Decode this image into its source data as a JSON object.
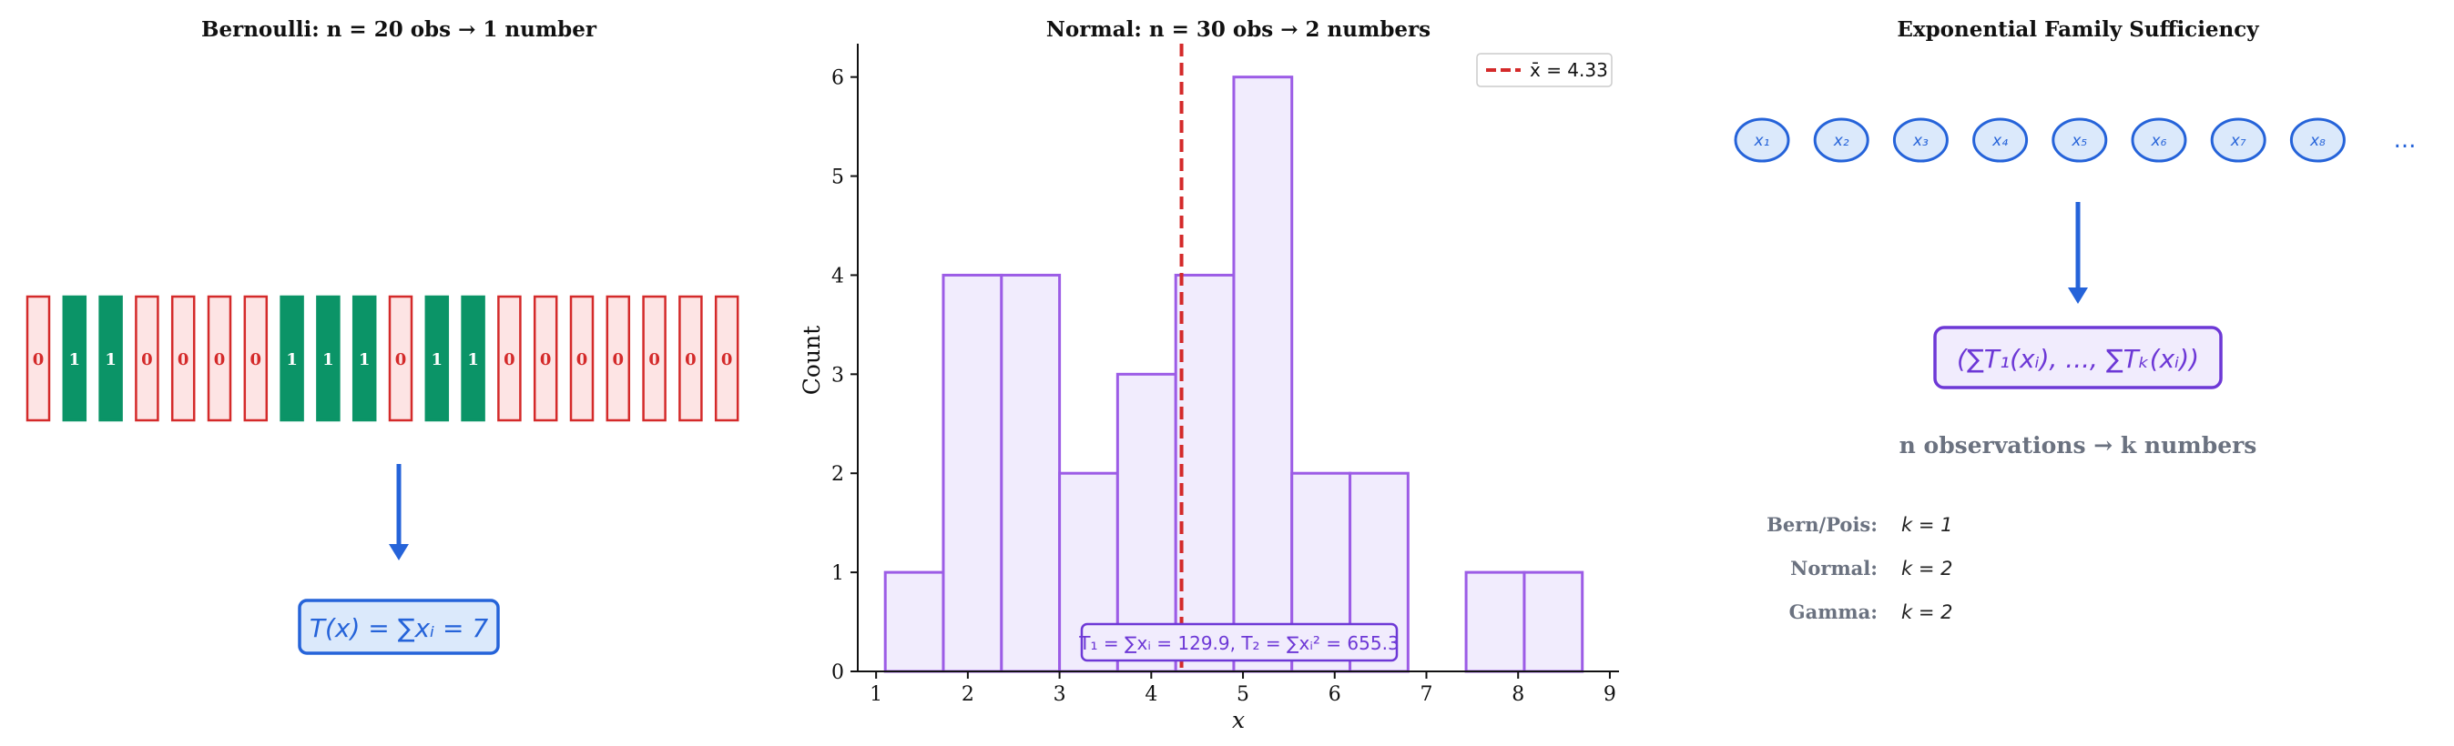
{
  "colors": {
    "zero_edge": "#d42a2a",
    "zero_fill": "#fde4e4",
    "one_fill": "#0b9467",
    "arrow": "#2563d9",
    "box_blue_fill": "#dbe9fb",
    "purple_edge": "#9c5ce6",
    "purple_fill": "#f1ecfd",
    "purple_dark": "#6d38d6",
    "mean_line": "#d42a2a",
    "gray_text": "#6b7280"
  },
  "panel1": {
    "title": "Bernoulli: n = 20 obs → 1 number",
    "observations": [
      0,
      1,
      1,
      0,
      0,
      0,
      0,
      1,
      1,
      1,
      0,
      1,
      1,
      0,
      0,
      0,
      0,
      0,
      0,
      0
    ],
    "statistic": "T(x) = ∑xᵢ = 7"
  },
  "chart_data": {
    "type": "bar",
    "title": "Normal: n = 30 obs → 2 numbers",
    "xlabel": "x",
    "ylabel": "Count",
    "bin_edges": [
      1.1,
      1.733,
      2.367,
      3.0,
      3.633,
      4.267,
      4.9,
      5.533,
      6.167,
      6.8,
      7.433,
      8.067,
      8.7
    ],
    "values": [
      1,
      4,
      4,
      2,
      3,
      4,
      6,
      2,
      2,
      0,
      1,
      1
    ],
    "xlim": [
      0.8,
      9.1
    ],
    "ylim": [
      0,
      6.3
    ],
    "xticks": [
      1,
      2,
      3,
      4,
      5,
      6,
      7,
      8,
      9
    ],
    "yticks": [
      0,
      1,
      2,
      3,
      4,
      5,
      6
    ],
    "mean_line": {
      "x": 4.33,
      "label": "x̄ = 4.33"
    },
    "legend_placement": "top-right",
    "grid": false,
    "annotation": "T₁ = ∑xᵢ = 129.9,  T₂ = ∑xᵢ² = 655.3"
  },
  "panel3": {
    "title": "Exponential Family Sufficiency",
    "nodes": [
      "x₁",
      "x₂",
      "x₃",
      "x₄",
      "x₅",
      "x₆",
      "x₇",
      "x₈"
    ],
    "ellipsis": "...",
    "statistic": "(∑T₁(xᵢ), ..., ∑Tₖ(xᵢ))",
    "caption": "n observations → k numbers",
    "table": [
      {
        "family": "Bern/Pois:",
        "k": "k = 1"
      },
      {
        "family": "Normal:",
        "k": "k = 2"
      },
      {
        "family": "Gamma:",
        "k": "k = 2"
      }
    ]
  }
}
